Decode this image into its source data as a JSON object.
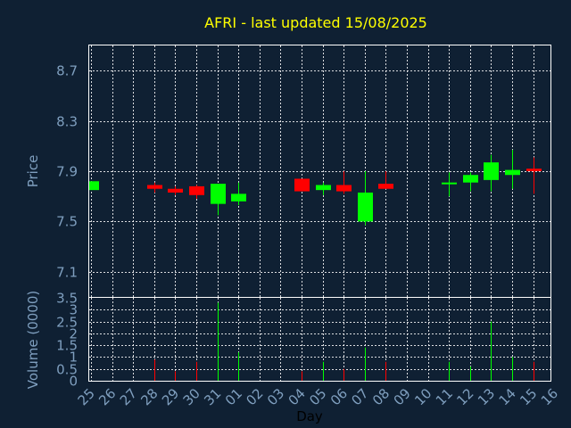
{
  "chart_data": {
    "type": "candlestick",
    "title": "AFRI - last updated 15/08/2025",
    "xlabel": "Day",
    "price_panel": {
      "ylabel": "Price",
      "ylim": [
        6.9,
        8.9
      ],
      "yticks": [
        "7.1",
        "7.5",
        "7.9",
        "8.3",
        "8.7"
      ],
      "ytick_values": [
        7.1,
        7.5,
        7.9,
        8.3,
        8.7
      ]
    },
    "volume_panel": {
      "ylabel": "Volume (0000)",
      "ylim": [
        0,
        3.5
      ],
      "yticks": [
        "0",
        "0.5",
        "1",
        "1.5",
        "2",
        "2.5",
        "3",
        "3.5"
      ],
      "ytick_values": [
        0,
        0.5,
        1,
        1.5,
        2,
        2.5,
        3,
        3.5
      ]
    },
    "categories": [
      "25",
      "26",
      "27",
      "28",
      "29",
      "30",
      "31",
      "01",
      "02",
      "03",
      "04",
      "05",
      "06",
      "07",
      "08",
      "09",
      "10",
      "11",
      "12",
      "13",
      "14",
      "15",
      "16"
    ],
    "colors": {
      "up": "#00ff00",
      "down": "#ff0000",
      "title": "#ffff00",
      "ticks": "#7f9fbf",
      "background": "#0f2033"
    },
    "candles": [
      {
        "day": "25",
        "open": 7.75,
        "close": 7.82,
        "high": 7.82,
        "low": 7.75,
        "volume": 0
      },
      {
        "day": "28",
        "open": 7.79,
        "close": 7.76,
        "high": 7.81,
        "low": 7.73,
        "volume": 0.9
      },
      {
        "day": "29",
        "open": 7.76,
        "close": 7.73,
        "high": 7.78,
        "low": 7.71,
        "volume": 0.4
      },
      {
        "day": "30",
        "open": 7.78,
        "close": 7.71,
        "high": 7.79,
        "low": 7.68,
        "volume": 0.8
      },
      {
        "day": "31",
        "open": 7.64,
        "close": 7.8,
        "high": 7.8,
        "low": 7.55,
        "volume": 3.3
      },
      {
        "day": "01",
        "open": 7.66,
        "close": 7.72,
        "high": 7.81,
        "low": 7.63,
        "volume": 1.2
      },
      {
        "day": "04",
        "open": 7.84,
        "close": 7.74,
        "high": 7.84,
        "low": 7.74,
        "volume": 0.4
      },
      {
        "day": "05",
        "open": 7.75,
        "close": 7.79,
        "high": 7.81,
        "low": 7.71,
        "volume": 0.8
      },
      {
        "day": "06",
        "open": 7.79,
        "close": 7.74,
        "high": 7.9,
        "low": 7.72,
        "volume": 0.5
      },
      {
        "day": "07",
        "open": 7.5,
        "close": 7.73,
        "high": 7.9,
        "low": 7.47,
        "volume": 1.4
      },
      {
        "day": "08",
        "open": 7.8,
        "close": 7.76,
        "high": 7.9,
        "low": 7.76,
        "volume": 0.8
      },
      {
        "day": "11",
        "open": 7.8,
        "close": 7.81,
        "high": 7.89,
        "low": 7.7,
        "volume": 0.8
      },
      {
        "day": "12",
        "open": 7.81,
        "close": 7.87,
        "high": 7.89,
        "low": 7.74,
        "volume": 0.6
      },
      {
        "day": "13",
        "open": 7.83,
        "close": 7.97,
        "high": 8.03,
        "low": 7.74,
        "volume": 2.5
      },
      {
        "day": "14",
        "open": 7.87,
        "close": 7.91,
        "high": 8.07,
        "low": 7.76,
        "volume": 1.0
      },
      {
        "day": "15",
        "open": 7.92,
        "close": 7.9,
        "high": 8.01,
        "low": 7.72,
        "volume": 0.8
      }
    ]
  }
}
